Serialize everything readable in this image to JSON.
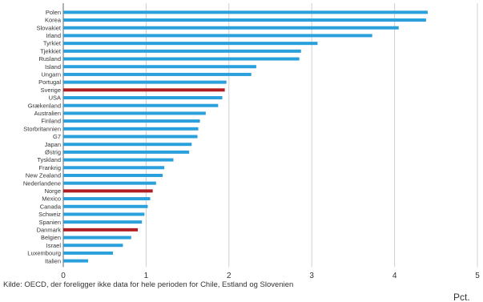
{
  "chart_data": {
    "type": "bar",
    "orientation": "horizontal",
    "categories": [
      "Polen",
      "Korea",
      "Slovakiet",
      "Irland",
      "Tyrkiet",
      "Tjekkiet",
      "Rusland",
      "Island",
      "Ungarn",
      "Portugal",
      "Sverige",
      "USA",
      "Grækenland",
      "Australien",
      "Finland",
      "Storbritannien",
      "G7",
      "Japan",
      "Østrig",
      "Tyskland",
      "Frankrig",
      "New Zealand",
      "Nederlandene",
      "Norge",
      "Mexico",
      "Canada",
      "Schweiz",
      "Spanien",
      "Danmark",
      "Belgien",
      "Israel",
      "Luxembourg",
      "Italien"
    ],
    "values": [
      4.4,
      4.38,
      4.05,
      3.73,
      3.07,
      2.87,
      2.85,
      2.33,
      2.27,
      1.97,
      1.95,
      1.92,
      1.87,
      1.72,
      1.65,
      1.63,
      1.62,
      1.55,
      1.52,
      1.33,
      1.22,
      1.2,
      1.12,
      1.08,
      1.05,
      1.02,
      0.98,
      0.95,
      0.9,
      0.82,
      0.72,
      0.6,
      0.3
    ],
    "highlight": [
      "Sverige",
      "Norge",
      "Danmark"
    ],
    "xlim": [
      0,
      5
    ],
    "xticks": [
      0,
      1,
      2,
      3,
      4,
      5
    ],
    "xunit": "Pct.",
    "grid": true,
    "colors": {
      "default": "#2aa0dc",
      "highlight": "#b01e24",
      "grid": "#d0d0d0",
      "axis": "#666666"
    }
  },
  "source_note": "Kilde: OECD, der foreligger ikke data for hele perioden for Chile, Estland og Slovenien"
}
